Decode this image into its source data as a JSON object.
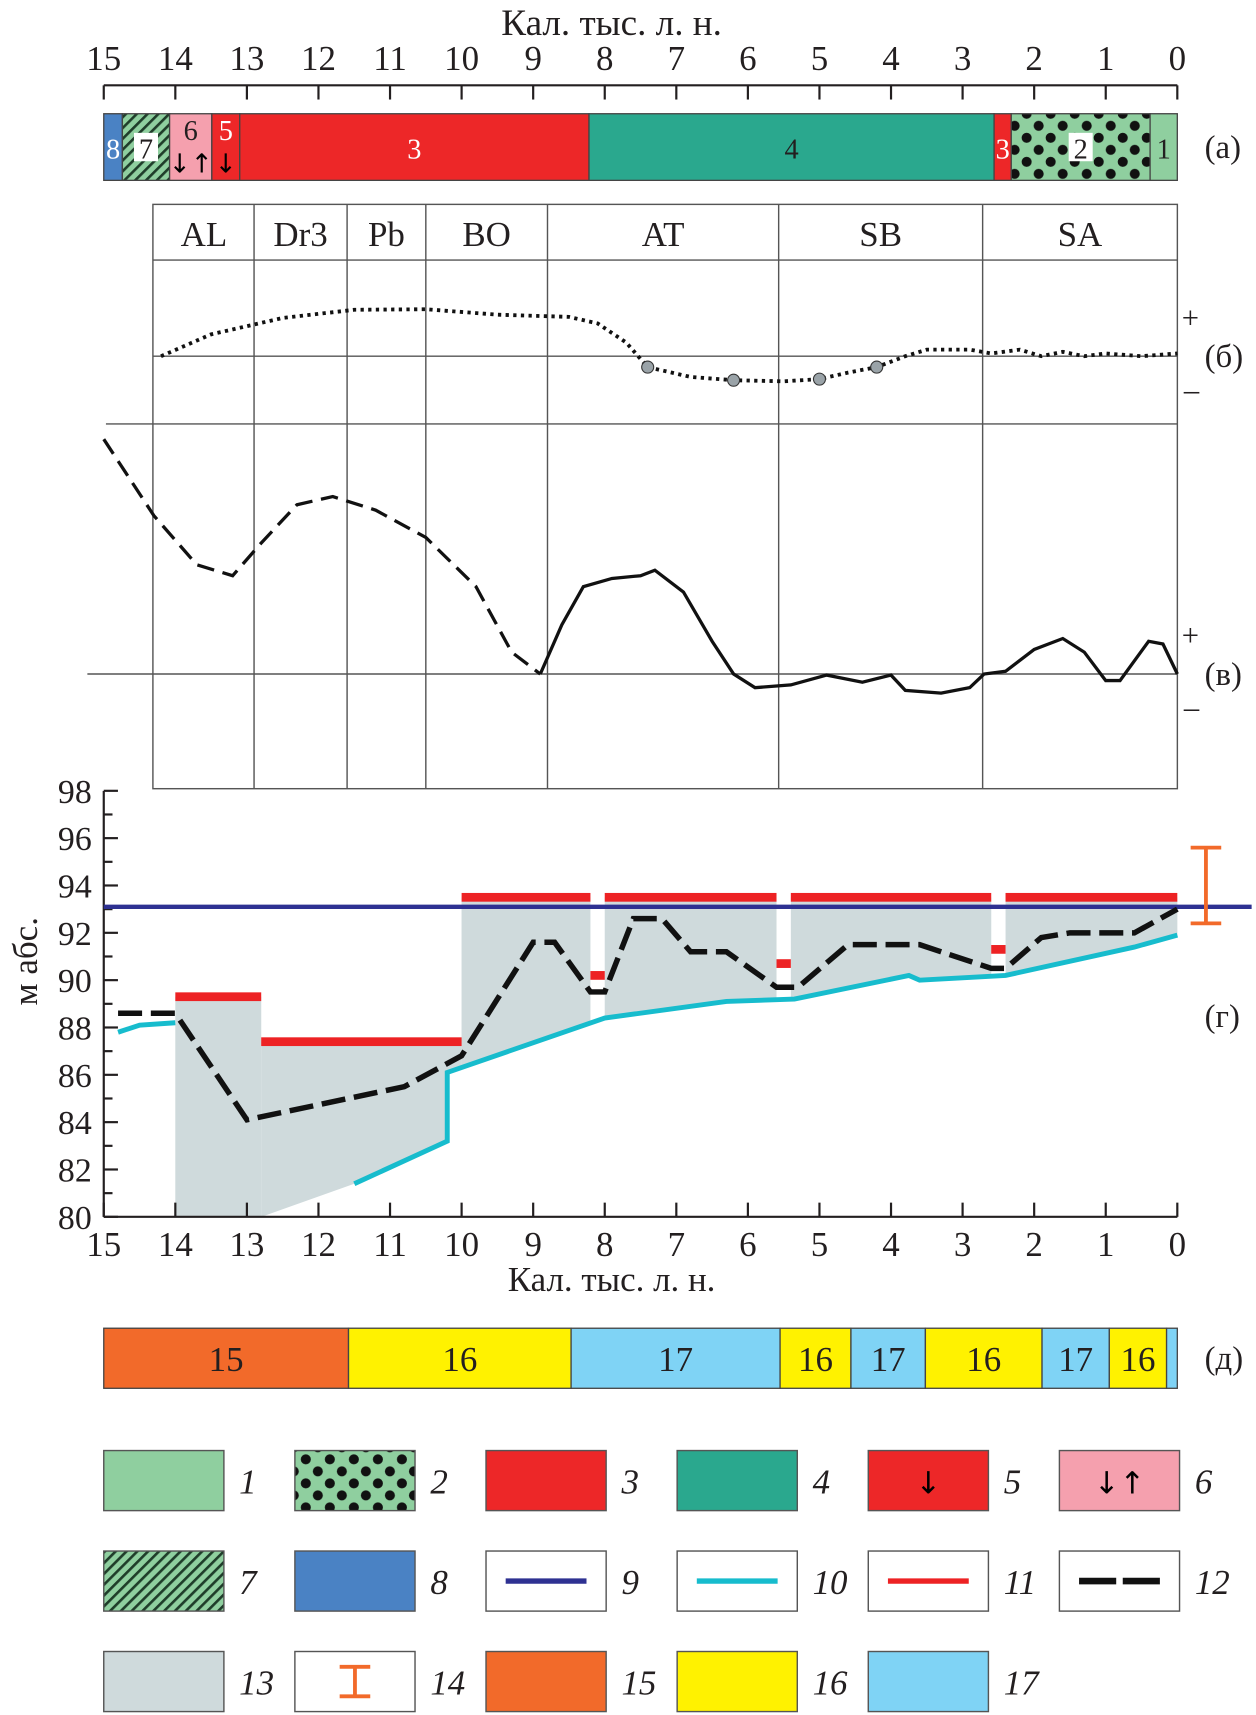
{
  "chart_data": [
    {
      "id": "panel_a",
      "type": "bar",
      "label": "(а)",
      "segments": [
        {
          "from": 15.0,
          "to": 14.74,
          "legend": 8,
          "label": "8"
        },
        {
          "from": 14.74,
          "to": 14.08,
          "legend": 7,
          "label": "7"
        },
        {
          "from": 14.08,
          "to": 13.49,
          "legend": 6,
          "label": "6"
        },
        {
          "from": 13.49,
          "to": 13.1,
          "legend": 5,
          "label": "5"
        },
        {
          "from": 13.1,
          "to": 8.22,
          "legend": 3,
          "label": "3"
        },
        {
          "from": 8.22,
          "to": 2.56,
          "legend": 4,
          "label": "4"
        },
        {
          "from": 2.56,
          "to": 2.32,
          "legend": 3,
          "label": "3"
        },
        {
          "from": 2.32,
          "to": 0.38,
          "legend": 2,
          "label": "2"
        },
        {
          "from": 0.38,
          "to": 0.0,
          "legend": 1,
          "label": "1"
        }
      ]
    },
    {
      "id": "periods",
      "type": "table",
      "items": [
        {
          "name": "AL",
          "from": 14.3,
          "to": 12.9
        },
        {
          "name": "Dr3",
          "from": 12.9,
          "to": 11.6
        },
        {
          "name": "Pb",
          "from": 11.6,
          "to": 10.5
        },
        {
          "name": "BO",
          "from": 10.5,
          "to": 8.8
        },
        {
          "name": "AT",
          "from": 8.8,
          "to": 5.57
        },
        {
          "name": "SB",
          "from": 5.57,
          "to": 2.72
        },
        {
          "name": "SA",
          "from": 2.72,
          "to": 0.0
        }
      ]
    },
    {
      "id": "panel_b",
      "type": "line",
      "label": "(б)",
      "plus": "+",
      "minus": "–",
      "style": "dotted",
      "points": [
        [
          14.2,
          0.0
        ],
        [
          13.5,
          0.4
        ],
        [
          12.5,
          0.7
        ],
        [
          11.5,
          0.85
        ],
        [
          10.5,
          0.86
        ],
        [
          9.5,
          0.76
        ],
        [
          8.5,
          0.72
        ],
        [
          8.1,
          0.6
        ],
        [
          7.7,
          0.25
        ],
        [
          7.4,
          -0.2
        ],
        [
          6.8,
          -0.38
        ],
        [
          6.2,
          -0.44
        ],
        [
          5.5,
          -0.46
        ],
        [
          5.0,
          -0.42
        ],
        [
          4.6,
          -0.3
        ],
        [
          4.2,
          -0.2
        ],
        [
          3.8,
          0.0
        ],
        [
          3.5,
          0.12
        ],
        [
          2.9,
          0.12
        ],
        [
          2.6,
          0.05
        ],
        [
          2.2,
          0.12
        ],
        [
          1.9,
          0.0
        ],
        [
          1.6,
          0.08
        ],
        [
          1.3,
          0.0
        ],
        [
          1.0,
          0.05
        ],
        [
          0.5,
          0.0
        ],
        [
          0.0,
          0.05
        ]
      ],
      "markers": [
        [
          7.4,
          -0.2
        ],
        [
          6.2,
          -0.44
        ],
        [
          5.0,
          -0.42
        ],
        [
          4.2,
          -0.2
        ]
      ]
    },
    {
      "id": "panel_v",
      "type": "line",
      "label": "(в)",
      "plus": "+",
      "minus": "–",
      "dashed_points": [
        [
          15.0,
          4.3
        ],
        [
          14.3,
          2.9
        ],
        [
          13.7,
          2.0
        ],
        [
          13.2,
          1.8
        ],
        [
          12.8,
          2.4
        ],
        [
          12.3,
          3.1
        ],
        [
          11.8,
          3.25
        ],
        [
          11.2,
          3.0
        ],
        [
          10.5,
          2.5
        ],
        [
          9.8,
          1.6
        ],
        [
          9.3,
          0.4
        ],
        [
          8.9,
          0.0
        ]
      ],
      "solid_points": [
        [
          8.9,
          0.0
        ],
        [
          8.6,
          0.9
        ],
        [
          8.3,
          1.6
        ],
        [
          7.9,
          1.75
        ],
        [
          7.5,
          1.8
        ],
        [
          7.3,
          1.9
        ],
        [
          6.9,
          1.5
        ],
        [
          6.5,
          0.6
        ],
        [
          6.2,
          0.0
        ],
        [
          5.9,
          -0.25
        ],
        [
          5.4,
          -0.2
        ],
        [
          4.9,
          -0.02
        ],
        [
          4.4,
          -0.15
        ],
        [
          4.0,
          -0.02
        ],
        [
          3.8,
          -0.3
        ],
        [
          3.3,
          -0.35
        ],
        [
          2.9,
          -0.25
        ],
        [
          2.7,
          0.0
        ],
        [
          2.4,
          0.05
        ],
        [
          2.0,
          0.45
        ],
        [
          1.6,
          0.65
        ],
        [
          1.3,
          0.4
        ],
        [
          1.0,
          -0.12
        ],
        [
          0.8,
          -0.12
        ],
        [
          0.4,
          0.6
        ],
        [
          0.2,
          0.55
        ],
        [
          0.0,
          0.0
        ]
      ]
    },
    {
      "id": "panel_g",
      "type": "line",
      "label": "(г)",
      "xlabel": "Кал. тыс. л. н.",
      "ylabel": "м абс.",
      "xlim": [
        15,
        0
      ],
      "ylim": [
        80,
        98
      ],
      "xticks": [
        "15",
        "14",
        "13",
        "12",
        "11",
        "10",
        "9",
        "8",
        "7",
        "6",
        "5",
        "4",
        "3",
        "2",
        "1",
        "0"
      ],
      "yticks": [
        "80",
        "82",
        "84",
        "86",
        "88",
        "90",
        "92",
        "94",
        "96",
        "98"
      ],
      "series": [
        {
          "name": "9",
          "color": "#2e3192",
          "level": 93.1
        },
        {
          "name": "10",
          "color": "#17bccd",
          "segments": [
            [
              [
                14.8,
                87.8
              ],
              [
                14.5,
                88.1
              ],
              [
                14.0,
                88.2
              ]
            ],
            [
              [
                11.5,
                81.4
              ],
              [
                10.2,
                83.2
              ],
              [
                10.2,
                86.1
              ],
              [
                8.0,
                88.4
              ],
              [
                6.3,
                89.1
              ],
              [
                5.35,
                89.2
              ],
              [
                3.75,
                90.2
              ],
              [
                3.6,
                90.0
              ],
              [
                2.4,
                90.2
              ],
              [
                0.6,
                91.4
              ],
              [
                0.0,
                91.9
              ]
            ]
          ]
        },
        {
          "name": "11",
          "color": "#ed2224",
          "bars": [
            [
              14.0,
              12.8,
              89.3
            ],
            [
              12.8,
              10.0,
              87.4
            ],
            [
              10.0,
              8.2,
              93.5
            ],
            [
              8.0,
              5.6,
              93.5
            ],
            [
              5.4,
              2.6,
              93.5
            ],
            [
              2.4,
              0.0,
              93.5
            ]
          ],
          "marks": [
            [
              8.2,
              8.0,
              90.2
            ],
            [
              5.6,
              5.4,
              90.7
            ],
            [
              2.6,
              2.4,
              91.3
            ]
          ]
        },
        {
          "name": "12",
          "color": "#000000",
          "points": [
            [
              14.8,
              88.6
            ],
            [
              14.0,
              88.6
            ],
            [
              13.0,
              84.1
            ],
            [
              10.8,
              85.5
            ],
            [
              10.0,
              86.8
            ],
            [
              9.0,
              91.6
            ],
            [
              8.7,
              91.6
            ],
            [
              8.2,
              89.5
            ],
            [
              8.0,
              89.5
            ],
            [
              7.6,
              92.6
            ],
            [
              7.2,
              92.6
            ],
            [
              6.8,
              91.2
            ],
            [
              6.3,
              91.2
            ],
            [
              5.6,
              89.7
            ],
            [
              5.3,
              89.7
            ],
            [
              4.6,
              91.5
            ],
            [
              3.6,
              91.5
            ],
            [
              2.6,
              90.5
            ],
            [
              2.4,
              90.5
            ],
            [
              1.9,
              91.8
            ],
            [
              1.5,
              92.0
            ],
            [
              0.6,
              92.0
            ],
            [
              0.0,
              93.0
            ]
          ]
        },
        {
          "name": "13",
          "color": "#cfdadc",
          "intervals": [
            [
              14.0,
              12.8,
              89.3
            ],
            [
              12.8,
              10.0,
              87.4
            ],
            [
              10.0,
              8.2,
              93.5
            ],
            [
              8.0,
              5.6,
              93.5
            ],
            [
              5.4,
              2.6,
              93.5
            ],
            [
              2.4,
              0.0,
              93.5
            ]
          ],
          "lower_bound": [
            [
              14.0,
              80
            ],
            [
              12.8,
              80
            ],
            [
              11.5,
              81.4
            ],
            [
              10.2,
              83.2
            ],
            [
              10.2,
              86.1
            ],
            [
              8.0,
              88.4
            ],
            [
              6.3,
              89.1
            ],
            [
              5.35,
              89.2
            ],
            [
              3.75,
              90.2
            ],
            [
              3.6,
              90.0
            ],
            [
              2.4,
              90.2
            ],
            [
              0.6,
              91.4
            ],
            [
              0.0,
              91.9
            ]
          ]
        },
        {
          "name": "14",
          "color": "#f26a2a",
          "age": -0.4,
          "range": [
            92.4,
            95.6
          ]
        }
      ]
    },
    {
      "id": "panel_d",
      "type": "bar",
      "label": "(д)",
      "segments": [
        {
          "from": 15.0,
          "to": 11.58,
          "legend": 15,
          "label": "15"
        },
        {
          "from": 11.58,
          "to": 8.47,
          "legend": 16,
          "label": "16"
        },
        {
          "from": 8.47,
          "to": 5.55,
          "legend": 17,
          "label": "17"
        },
        {
          "from": 5.55,
          "to": 4.56,
          "legend": 16,
          "label": "16"
        },
        {
          "from": 4.56,
          "to": 3.52,
          "legend": 17,
          "label": "17"
        },
        {
          "from": 3.52,
          "to": 1.89,
          "legend": 16,
          "label": "16"
        },
        {
          "from": 1.89,
          "to": 0.95,
          "legend": 17,
          "label": "17"
        },
        {
          "from": 0.95,
          "to": 0.15,
          "legend": 16,
          "label": "16"
        },
        {
          "from": 0.15,
          "to": 0.0,
          "legend": 17,
          "label": ""
        }
      ]
    }
  ],
  "top_axis": {
    "title": "Кал. тыс. л. н.",
    "ticks": [
      "15",
      "14",
      "13",
      "12",
      "11",
      "10",
      "9",
      "8",
      "7",
      "6",
      "5",
      "4",
      "3",
      "2",
      "1",
      "0"
    ]
  },
  "legend": [
    {
      "n": "1",
      "kind": "fill",
      "color": "#8fcf9f"
    },
    {
      "n": "2",
      "kind": "dots",
      "color": "#8fcf9f"
    },
    {
      "n": "3",
      "kind": "fill",
      "color": "#ed2728"
    },
    {
      "n": "4",
      "kind": "fill",
      "color": "#2aa88e"
    },
    {
      "n": "5",
      "kind": "fill",
      "color": "#ed2728",
      "symbol": "↓"
    },
    {
      "n": "6",
      "kind": "fill",
      "color": "#f5a0ae",
      "symbol": "↓↑"
    },
    {
      "n": "7",
      "kind": "hatch",
      "color": "#8fcf9f"
    },
    {
      "n": "8",
      "kind": "fill",
      "color": "#4a82c4"
    },
    {
      "n": "9",
      "kind": "line",
      "color": "#2e3192"
    },
    {
      "n": "10",
      "kind": "line",
      "color": "#17bccd"
    },
    {
      "n": "11",
      "kind": "line",
      "color": "#ed2224"
    },
    {
      "n": "12",
      "kind": "dash",
      "color": "#000000"
    },
    {
      "n": "13",
      "kind": "fill",
      "color": "#cfdadc"
    },
    {
      "n": "14",
      "kind": "errorbar",
      "color": "#f26a2a"
    },
    {
      "n": "15",
      "kind": "fill",
      "color": "#f26a2a"
    },
    {
      "n": "16",
      "kind": "fill",
      "color": "#fff200"
    },
    {
      "n": "17",
      "kind": "fill",
      "color": "#7fd3f5"
    }
  ]
}
